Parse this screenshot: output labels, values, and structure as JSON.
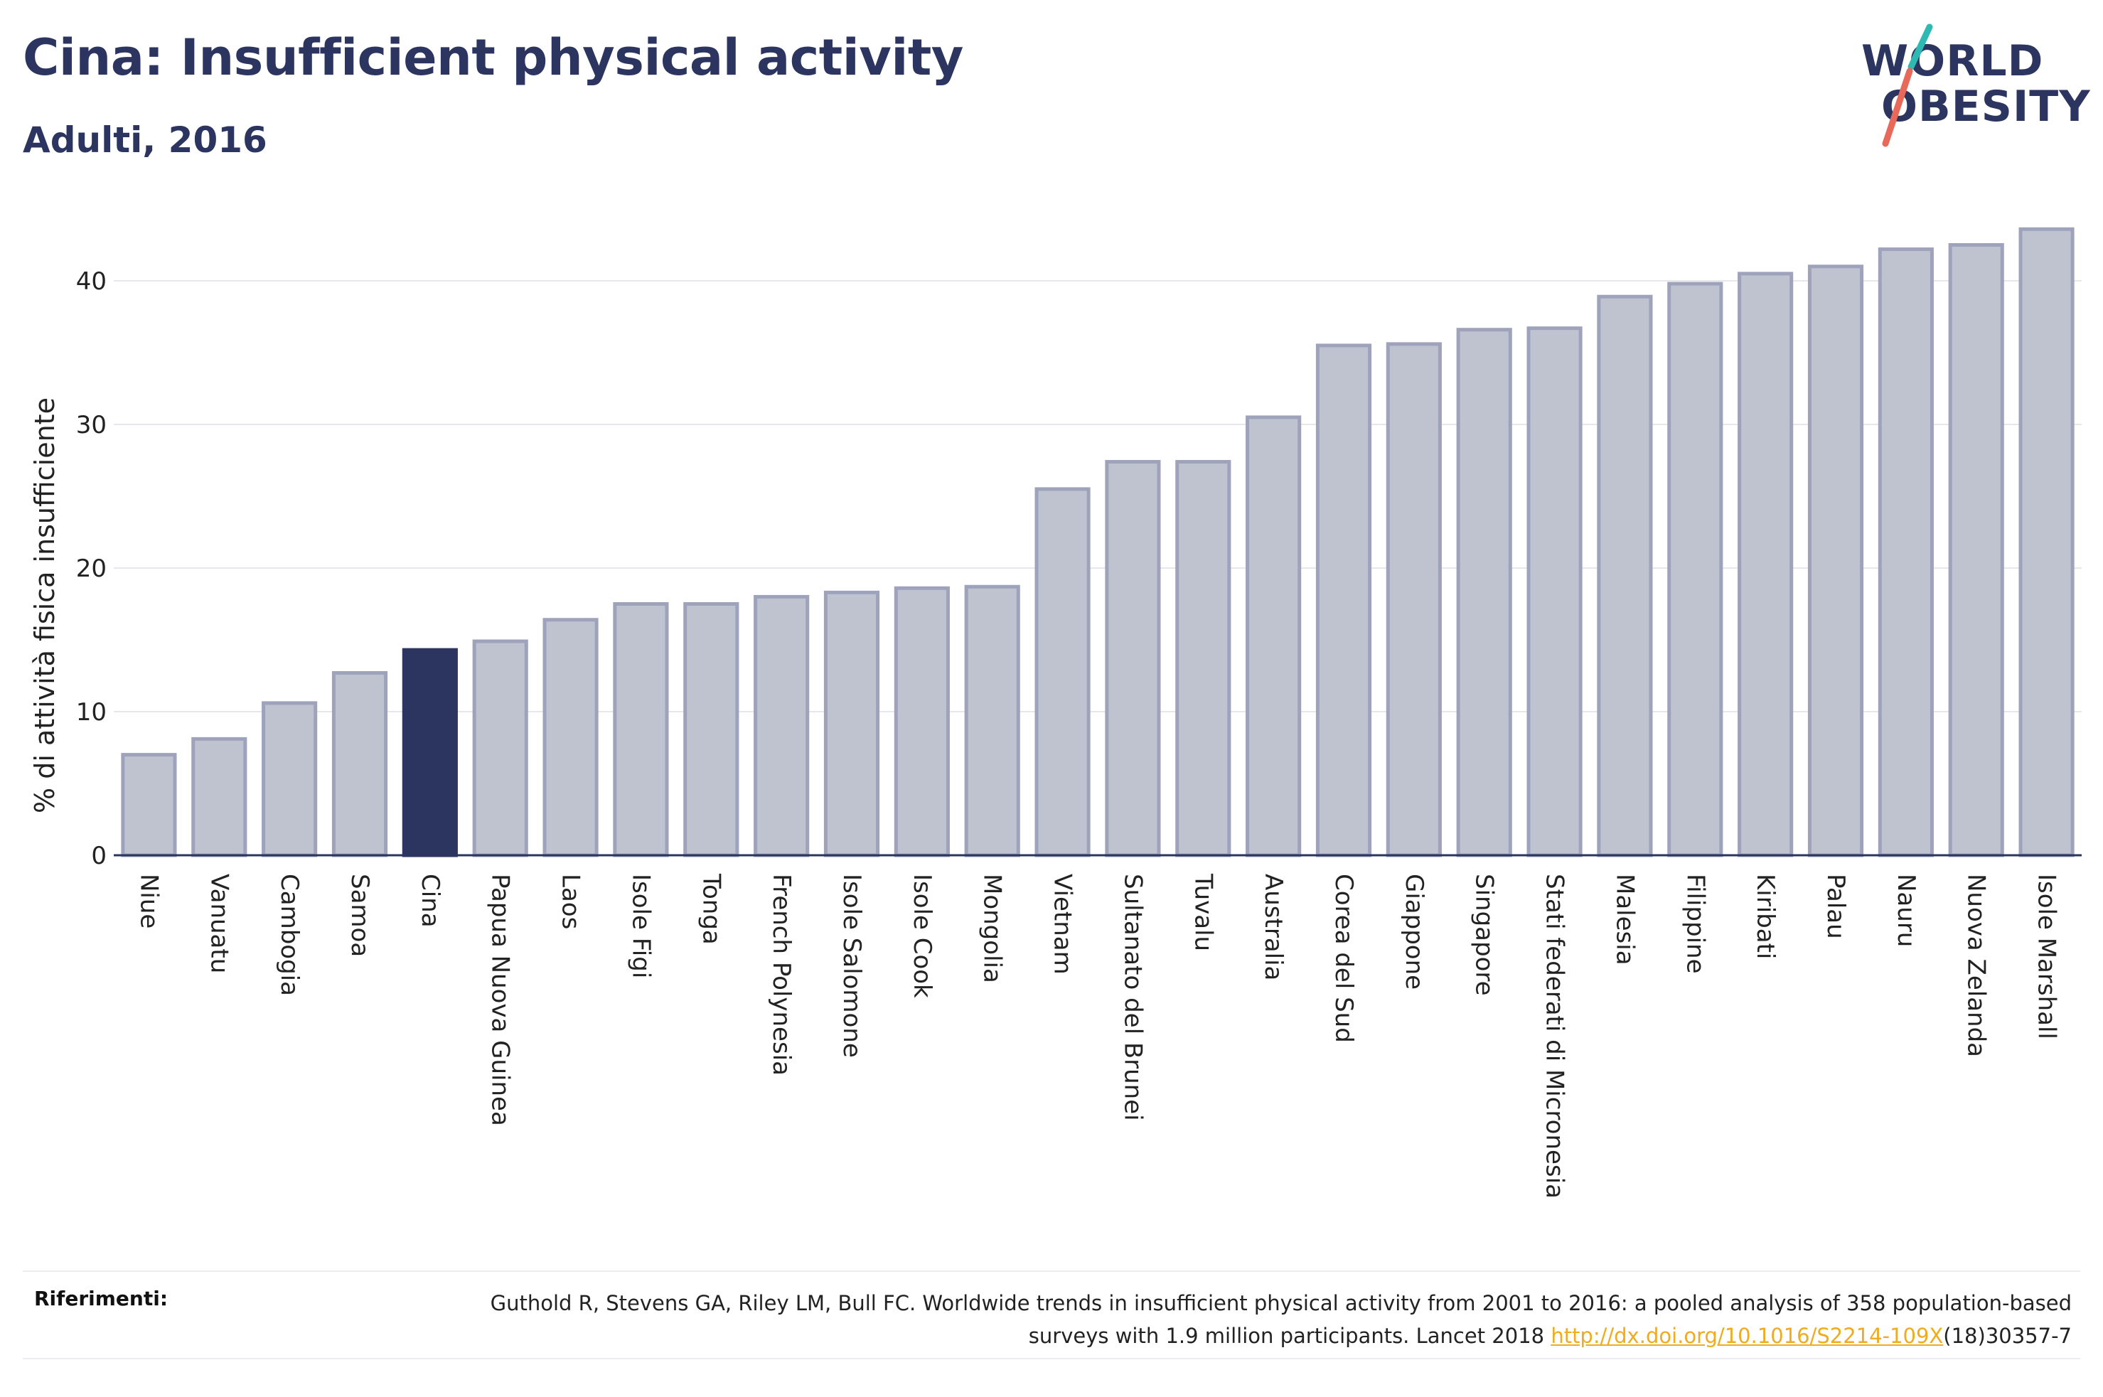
{
  "header": {
    "title": "Cina: Insufficient physical activity",
    "subtitle": "Adulti, 2016"
  },
  "logo": {
    "line1": "WORLD",
    "line2": "OBESITY",
    "accent_teal": "#2fb9b3",
    "accent_coral": "#e8685a"
  },
  "colors": {
    "bar": "#bfc2cf",
    "bar_stroke": "#9ea3bb",
    "highlight": "#2b3560",
    "grid": "#e6e7ec",
    "axis": "#2b3560",
    "text": "#2b3560"
  },
  "chart_data": {
    "type": "bar",
    "title": "Cina: Insufficient physical activity",
    "subtitle": "Adulti, 2016",
    "xlabel": "",
    "ylabel": "% di attività fisica insufficiente",
    "ylim": [
      0,
      45
    ],
    "yticks": [
      0,
      10,
      20,
      30,
      40
    ],
    "grid": true,
    "highlight": "Cina",
    "categories": [
      "Niue",
      "Vanuatu",
      "Cambogia",
      "Samoa",
      "Cina",
      "Papua Nuova Guinea",
      "Laos",
      "Isole Figi",
      "Tonga",
      "French Polynesia",
      "Isole Salomone",
      "Isole Cook",
      "Mongolia",
      "Vietnam",
      "Sultanato del Brunei",
      "Tuvalu",
      "Australia",
      "Corea del Sud",
      "Giappone",
      "Singapore",
      "Stati federati di Micronesia",
      "Malesia",
      "Filippine",
      "Kiribati",
      "Palau",
      "Nauru",
      "Nuova Zelanda",
      "Isole Marshall"
    ],
    "values": [
      7.0,
      8.1,
      10.6,
      12.7,
      14.3,
      14.9,
      16.4,
      17.5,
      17.5,
      18.0,
      18.3,
      18.6,
      18.7,
      25.5,
      27.4,
      27.4,
      30.5,
      35.5,
      35.6,
      36.6,
      36.7,
      38.9,
      39.8,
      40.5,
      41.0,
      42.2,
      42.5,
      43.6
    ]
  },
  "references": {
    "label": "Riferimenti:",
    "text_before_link": "Guthold R, Stevens GA, Riley LM, Bull FC. Worldwide trends in insufficient physical activity from 2001 to 2016: a pooled analysis of 358 population-based surveys with 1.9 million participants. Lancet 2018 ",
    "link": "http://dx.doi.org/10.1016/S2214-109X",
    "text_after_link": "(18)30357-7"
  }
}
